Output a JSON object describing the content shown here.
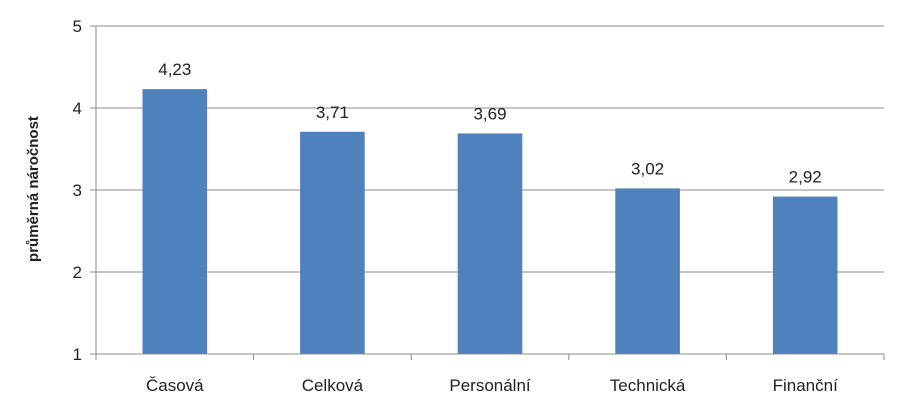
{
  "chart_data": {
    "type": "bar",
    "title": "",
    "xlabel": "",
    "ylabel": "průměrná náročnost",
    "categories": [
      "Časová",
      "Celková",
      "Personální",
      "Technická",
      "Finanční"
    ],
    "values": [
      4.23,
      3.71,
      3.69,
      3.02,
      2.92
    ],
    "value_labels": [
      "4,23",
      "3,71",
      "3,69",
      "3,02",
      "2,92"
    ],
    "yticks": [
      1,
      2,
      3,
      4,
      5
    ],
    "ylim": [
      1,
      5
    ],
    "grid": true,
    "legend": "none",
    "colors": {
      "bar": "#4f81bd",
      "grid": "#8c8c8c",
      "axis": "#8c8c8c"
    }
  }
}
